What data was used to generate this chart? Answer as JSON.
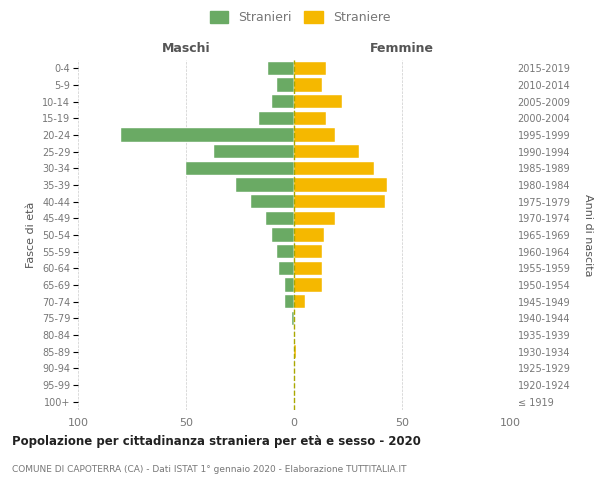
{
  "age_groups": [
    "100+",
    "95-99",
    "90-94",
    "85-89",
    "80-84",
    "75-79",
    "70-74",
    "65-69",
    "60-64",
    "55-59",
    "50-54",
    "45-49",
    "40-44",
    "35-39",
    "30-34",
    "25-29",
    "20-24",
    "15-19",
    "10-14",
    "5-9",
    "0-4"
  ],
  "birth_years": [
    "≤ 1919",
    "1920-1924",
    "1925-1929",
    "1930-1934",
    "1935-1939",
    "1940-1944",
    "1945-1949",
    "1950-1954",
    "1955-1959",
    "1960-1964",
    "1965-1969",
    "1970-1974",
    "1975-1979",
    "1980-1984",
    "1985-1989",
    "1990-1994",
    "1995-1999",
    "2000-2004",
    "2005-2009",
    "2010-2014",
    "2015-2019"
  ],
  "males": [
    0,
    0,
    0,
    0,
    0,
    1,
    4,
    4,
    7,
    8,
    10,
    13,
    20,
    27,
    50,
    37,
    80,
    16,
    10,
    8,
    12
  ],
  "females": [
    0,
    0,
    0,
    1,
    0,
    0,
    5,
    13,
    13,
    13,
    14,
    19,
    42,
    43,
    37,
    30,
    19,
    15,
    22,
    13,
    15
  ],
  "male_color": "#6aaa64",
  "female_color": "#f5b800",
  "title": "Popolazione per cittadinanza straniera per età e sesso - 2020",
  "subtitle": "COMUNE DI CAPOTERRA (CA) - Dati ISTAT 1° gennaio 2020 - Elaborazione TUTTITALIA.IT",
  "xlabel_left": "Maschi",
  "xlabel_right": "Femmine",
  "ylabel_left": "Fasce di età",
  "ylabel_right": "Anni di nascita",
  "legend_male": "Stranieri",
  "legend_female": "Straniere",
  "xlim": 100,
  "background_color": "#ffffff",
  "grid_color": "#cccccc",
  "text_color": "#777777",
  "axis_label_color": "#555555",
  "dashed_line_color": "#aaa800"
}
